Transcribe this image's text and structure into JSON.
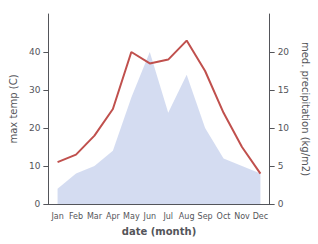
{
  "chart_data": {
    "type": "line",
    "xlabel": "date (month)",
    "ylabel": "max temp (C)",
    "y2label": "med. precipitation (kg/m2)",
    "categories": [
      "Jan",
      "Feb",
      "Mar",
      "Apr",
      "May",
      "Jun",
      "Jul",
      "Aug",
      "Sep",
      "Oct",
      "Nov",
      "Dec"
    ],
    "series": [
      {
        "type": "line",
        "color": "#c0504d",
        "values": [
          11,
          13,
          18,
          25,
          40,
          37,
          38,
          43,
          35,
          24,
          15,
          8
        ]
      },
      {
        "type": "area",
        "color": "#b8c4e8",
        "axis": "y2",
        "values": [
          2,
          4,
          5,
          7,
          14,
          20,
          12,
          17,
          10,
          6,
          5,
          4
        ]
      }
    ],
    "ylim": [
      0,
      50
    ],
    "yticks": [
      0,
      10,
      20,
      30,
      40
    ],
    "y2lim": [
      0,
      25
    ],
    "y2ticks": [
      0,
      5,
      10,
      15,
      20
    ],
    "grid": false
  }
}
